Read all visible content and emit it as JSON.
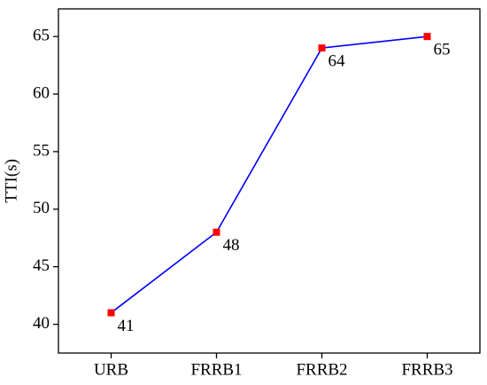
{
  "chart_data": {
    "type": "line",
    "y_label": "TTI(s)",
    "categories": [
      "URB",
      "FRRB1",
      "FRRB2",
      "FRRB3"
    ],
    "series": [
      {
        "name": "TTI",
        "color": "#0000ff",
        "marker_color": "#ff0000",
        "values": [
          41,
          48,
          64,
          65
        ]
      }
    ],
    "ylim": [
      37.5,
      67.4
    ],
    "yticks": [
      40,
      45,
      50,
      55,
      60,
      65
    ],
    "grid": false
  }
}
